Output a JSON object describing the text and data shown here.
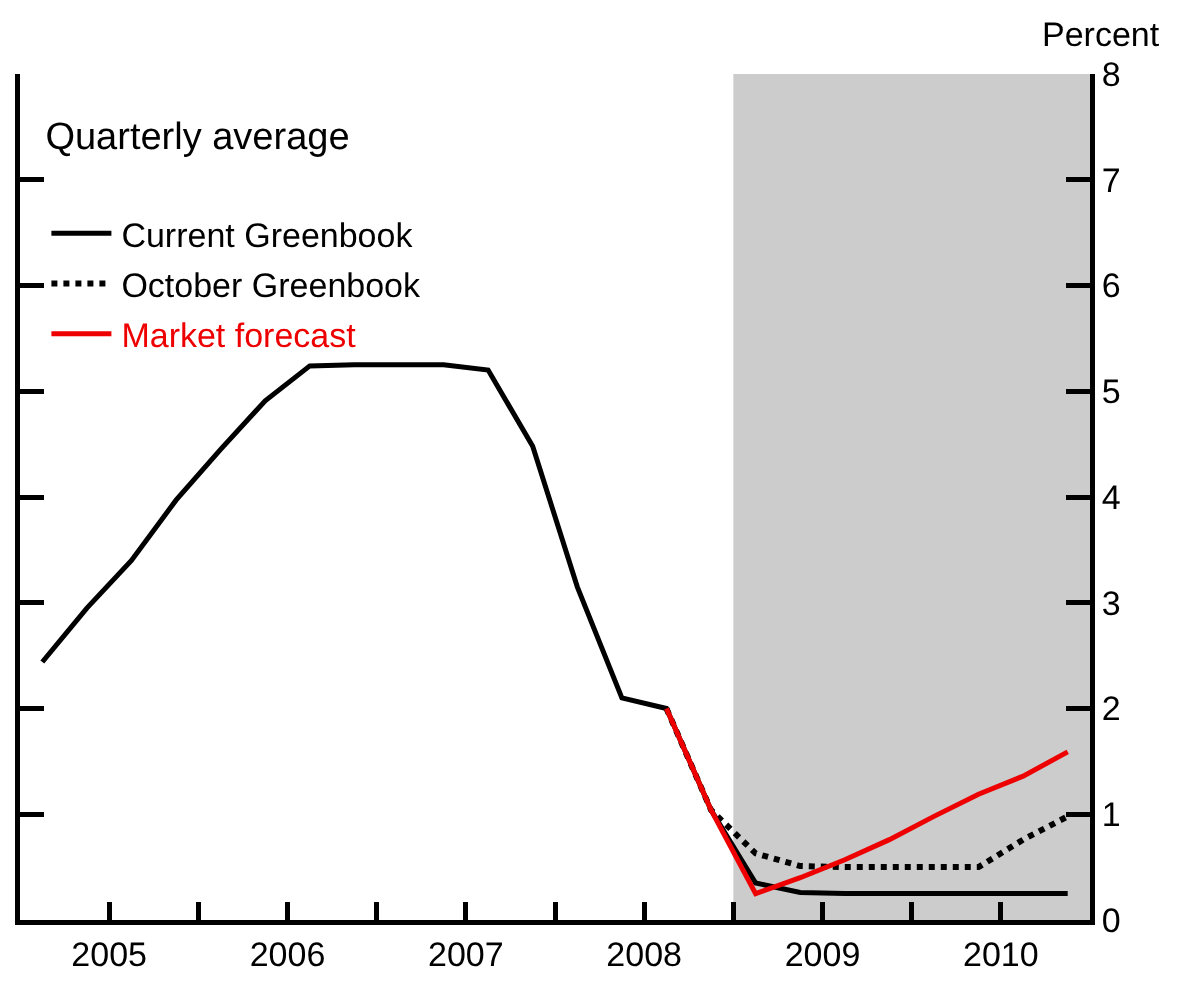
{
  "chart_data": {
    "type": "line",
    "ylabel": "Percent",
    "legend_title": "Quarterly average",
    "legend": "top left",
    "xlim": [
      2004.5,
      2010.5
    ],
    "xticks": [
      {
        "value": 2004.5,
        "label": null
      },
      2005,
      {
        "value": 2005.5,
        "label": null
      },
      2006,
      {
        "value": 2006.5,
        "label": null
      },
      2007,
      {
        "value": 2007.5,
        "label": null
      },
      2008,
      {
        "value": 2008.5,
        "label": null
      },
      2009,
      {
        "value": 2009.5,
        "label": null
      },
      2010,
      {
        "value": 2010.5,
        "label": null
      }
    ],
    "ylim": [
      0,
      8
    ],
    "yticks": [
      0,
      1,
      2,
      3,
      4,
      5,
      6,
      7,
      8
    ],
    "grid": false,
    "marker": "none",
    "bands": [
      {
        "axis": "x",
        "from": 2008.5,
        "to": 2010.5,
        "color": "#cccccc"
      }
    ],
    "series": [
      {
        "name": "Current Greenbook",
        "color": "#000000",
        "line_style": "solid",
        "x": [
          2004.625,
          2004.875,
          2005.125,
          2005.375,
          2005.625,
          2005.875,
          2006.125,
          2006.375,
          2006.625,
          2006.875,
          2007.125,
          2007.375,
          2007.625,
          2007.875,
          2008.125,
          2008.375,
          2008.625,
          2008.875,
          2009.125,
          2009.375,
          2009.625,
          2009.875,
          2010.125,
          2010.375
        ],
        "values": [
          2.44,
          2.95,
          3.4,
          3.97,
          4.45,
          4.91,
          5.24,
          5.25,
          5.25,
          5.25,
          5.2,
          4.48,
          3.15,
          2.1,
          2.0,
          1.04,
          0.35,
          0.26,
          0.25,
          0.25,
          0.25,
          0.25,
          0.25,
          0.25
        ]
      },
      {
        "name": "October Greenbook",
        "color": "#000000",
        "line_style": "dotted",
        "x": [
          2008.125,
          2008.375,
          2008.625,
          2008.875,
          2009.125,
          2009.375,
          2009.625,
          2009.875,
          2010.125,
          2010.375
        ],
        "values": [
          2.0,
          1.04,
          0.63,
          0.51,
          0.5,
          0.5,
          0.5,
          0.5,
          0.76,
          0.98
        ]
      },
      {
        "name": "Market forecast",
        "color": "#ee0000",
        "line_style": "solid",
        "x": [
          2008.125,
          2008.375,
          2008.625,
          2008.875,
          2009.125,
          2009.375,
          2009.625,
          2009.875,
          2010.125,
          2010.375
        ],
        "values": [
          2.0,
          1.04,
          0.25,
          0.4,
          0.57,
          0.76,
          0.98,
          1.19,
          1.36,
          1.59
        ]
      }
    ]
  }
}
